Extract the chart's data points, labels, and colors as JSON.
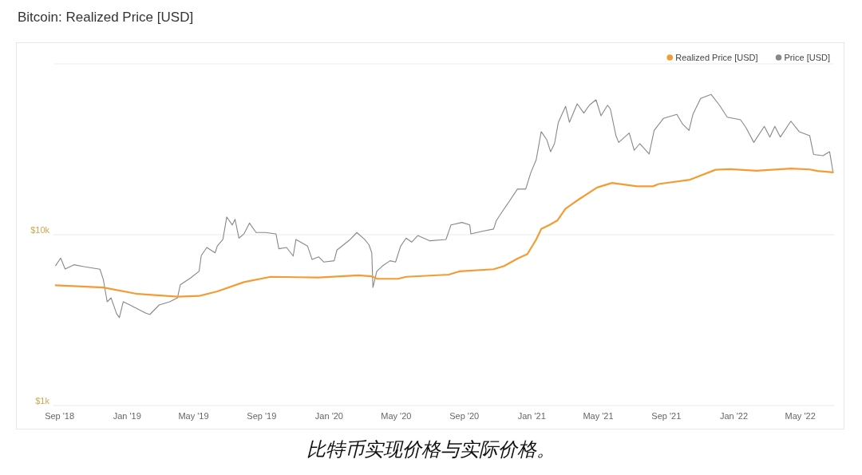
{
  "chart_data": {
    "type": "line",
    "title": "Bitcoin: Realized Price [USD]",
    "annotations": [
      "比特币实现价格与实际价格。"
    ],
    "log": "y",
    "grid": "y",
    "legend": "top right",
    "xlim": [
      "2018-08-21",
      "2022-07-01"
    ],
    "xticks": [
      {
        "value": "2018-09-01",
        "label": "Sep '18"
      },
      {
        "value": "2019-01-01",
        "label": "Jan '19"
      },
      {
        "value": "2019-05-01",
        "label": "May '19"
      },
      {
        "value": "2019-09-01",
        "label": "Sep '19"
      },
      {
        "value": "2020-01-01",
        "label": "Jan '20"
      },
      {
        "value": "2020-05-01",
        "label": "May '20"
      },
      {
        "value": "2020-09-01",
        "label": "Sep '20"
      },
      {
        "value": "2021-01-01",
        "label": "Jan '21"
      },
      {
        "value": "2021-05-01",
        "label": "May '21"
      },
      {
        "value": "2021-09-01",
        "label": "Sep '21"
      },
      {
        "value": "2022-01-01",
        "label": "Jan '22"
      },
      {
        "value": "2022-05-01",
        "label": "May '22"
      }
    ],
    "ylim": [
      1000,
      100000
    ],
    "yticks": [
      {
        "value": 1000,
        "label": "$1k"
      },
      {
        "value": 10000,
        "label": "$10k"
      },
      {
        "value": 100000,
        "label": null
      }
    ],
    "series": [
      {
        "name": "Realized Price [USD]",
        "color": "#f39c34",
        "x": [
          "2018-08-25",
          "2018-11-19",
          "2019-01-20",
          "2019-04-02",
          "2019-05-11",
          "2019-06-13",
          "2019-07-31",
          "2019-09-17",
          "2019-11-04",
          "2019-12-13",
          "2020-02-23",
          "2020-03-18",
          "2020-03-27",
          "2020-05-04",
          "2020-05-19",
          "2020-08-04",
          "2020-08-23",
          "2020-10-24",
          "2020-11-12",
          "2020-12-06",
          "2020-12-24",
          "2021-01-09",
          "2021-01-18",
          "2021-02-02",
          "2021-02-16",
          "2021-03-03",
          "2021-03-27",
          "2021-04-29",
          "2021-05-26",
          "2021-07-10",
          "2021-08-08",
          "2021-08-18",
          "2021-10-14",
          "2021-11-29",
          "2021-12-25",
          "2022-02-11",
          "2022-04-14",
          "2022-05-18",
          "2022-06-01",
          "2022-06-29"
        ],
        "values": [
          5060,
          4910,
          4500,
          4340,
          4380,
          4660,
          5280,
          5670,
          5640,
          5610,
          5780,
          5710,
          5530,
          5520,
          5670,
          5840,
          6100,
          6280,
          6550,
          7240,
          7700,
          9380,
          10800,
          11400,
          12100,
          14200,
          16100,
          18900,
          20100,
          19200,
          19200,
          19800,
          21000,
          24000,
          24200,
          23700,
          24400,
          24100,
          23600,
          23200
        ]
      },
      {
        "name": "Price [USD]",
        "color": "#888888",
        "x": [
          "2018-08-25",
          "2018-09-03",
          "2018-09-11",
          "2018-09-27",
          "2018-10-15",
          "2018-11-13",
          "2018-11-19",
          "2018-11-26",
          "2018-12-03",
          "2018-12-13",
          "2018-12-18",
          "2018-12-25",
          "2019-01-06",
          "2019-01-20",
          "2019-02-03",
          "2019-02-11",
          "2019-02-28",
          "2019-03-19",
          "2019-04-02",
          "2019-04-07",
          "2019-04-26",
          "2019-05-11",
          "2019-05-15",
          "2019-05-25",
          "2019-06-09",
          "2019-06-13",
          "2019-06-23",
          "2019-06-30",
          "2019-07-10",
          "2019-07-15",
          "2019-07-22",
          "2019-07-31",
          "2019-08-10",
          "2019-08-22",
          "2019-09-08",
          "2019-09-27",
          "2019-10-02",
          "2019-10-16",
          "2019-10-28",
          "2019-11-02",
          "2019-11-23",
          "2019-12-01",
          "2019-12-13",
          "2019-12-22",
          "2020-01-10",
          "2020-01-15",
          "2020-02-08",
          "2020-02-20",
          "2020-03-05",
          "2020-03-13",
          "2020-03-18",
          "2020-03-20",
          "2020-03-27",
          "2020-04-06",
          "2020-04-20",
          "2020-04-30",
          "2020-05-09",
          "2020-05-19",
          "2020-05-29",
          "2020-06-09",
          "2020-07-01",
          "2020-07-30",
          "2020-08-08",
          "2020-08-28",
          "2020-09-11",
          "2020-09-13",
          "2020-10-05",
          "2020-10-24",
          "2020-10-29",
          "2020-11-07",
          "2020-11-22",
          "2020-12-06",
          "2020-12-21",
          "2020-12-30",
          "2021-01-09",
          "2021-01-18",
          "2021-01-28",
          "2021-02-04",
          "2021-02-11",
          "2021-02-18",
          "2021-03-03",
          "2021-03-10",
          "2021-03-24",
          "2021-04-05",
          "2021-04-15",
          "2021-04-27",
          "2021-05-06",
          "2021-05-18",
          "2021-05-23",
          "2021-06-02",
          "2021-06-07",
          "2021-06-26",
          "2021-07-05",
          "2021-07-15",
          "2021-08-01",
          "2021-08-10",
          "2021-08-27",
          "2021-09-20",
          "2021-09-30",
          "2021-10-12",
          "2021-10-19",
          "2021-11-02",
          "2021-11-21",
          "2021-12-06",
          "2021-12-20",
          "2022-01-13",
          "2022-01-23",
          "2022-02-06",
          "2022-02-25",
          "2022-03-07",
          "2022-03-16",
          "2022-03-26",
          "2022-04-14",
          "2022-04-29",
          "2022-05-18",
          "2022-05-25",
          "2022-06-11",
          "2022-06-23",
          "2022-06-29"
        ],
        "values": [
          6600,
          7300,
          6300,
          6670,
          6500,
          6280,
          5470,
          4050,
          4270,
          3450,
          3270,
          4050,
          3880,
          3680,
          3480,
          3410,
          3880,
          4050,
          4270,
          5090,
          5590,
          6100,
          7560,
          8420,
          7830,
          8600,
          9380,
          12700,
          11400,
          12300,
          9550,
          10100,
          11700,
          10300,
          10300,
          10100,
          8270,
          8420,
          7500,
          9380,
          8570,
          7170,
          7420,
          6920,
          7040,
          8130,
          9380,
          10300,
          9380,
          8720,
          7830,
          4910,
          6100,
          6550,
          7040,
          6920,
          8570,
          9550,
          9050,
          9890,
          9210,
          9380,
          11400,
          11800,
          11400,
          10100,
          10500,
          10800,
          12100,
          13400,
          15800,
          18500,
          18500,
          23000,
          27500,
          40100,
          36000,
          30600,
          34100,
          45500,
          56400,
          45500,
          58400,
          51500,
          57300,
          61600,
          49700,
          57300,
          54300,
          38000,
          34700,
          39400,
          31200,
          34100,
          29700,
          40800,
          48000,
          50600,
          44600,
          40800,
          50600,
          62800,
          66200,
          57300,
          48800,
          47100,
          42300,
          34700,
          43100,
          37300,
          43100,
          37300,
          46200,
          40100,
          38000,
          29500,
          29000,
          30600,
          23400
        ]
      }
    ]
  }
}
